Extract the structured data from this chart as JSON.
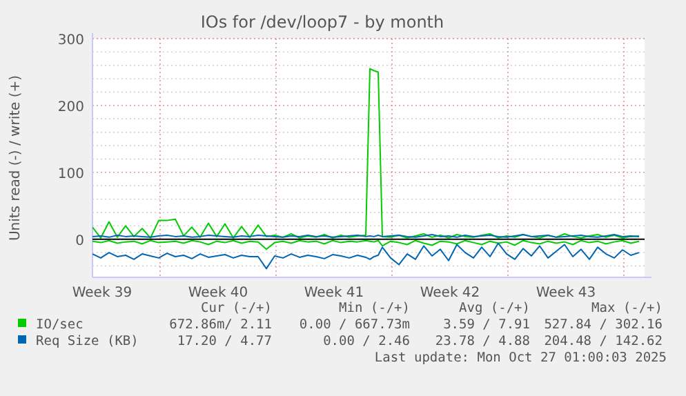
{
  "chart_data": {
    "type": "line",
    "title": "IOs for /dev/loop7 - by month",
    "ylabel": "Units read (-) / write (+)",
    "x": [
      "2025-09-24T22:00",
      "2025-09-25T10:00",
      "2025-09-25T22:00",
      "2025-09-26T10:00",
      "2025-09-26T22:00",
      "2025-09-27T10:00",
      "2025-09-27T22:00",
      "2025-09-28T10:00",
      "2025-09-28T22:00",
      "2025-09-29T10:00",
      "2025-09-29T22:00",
      "2025-09-30T10:00",
      "2025-09-30T22:00",
      "2025-10-01T10:00",
      "2025-10-01T22:00",
      "2025-10-02T10:00",
      "2025-10-02T22:00",
      "2025-10-03T10:00",
      "2025-10-03T22:00",
      "2025-10-04T10:00",
      "2025-10-04T22:00",
      "2025-10-05T10:00",
      "2025-10-05T22:00",
      "2025-10-06T10:00",
      "2025-10-06T22:00",
      "2025-10-07T10:00",
      "2025-10-07T22:00",
      "2025-10-08T10:00",
      "2025-10-08T22:00",
      "2025-10-09T10:00",
      "2025-10-09T22:00",
      "2025-10-10T10:00",
      "2025-10-10T22:00",
      "2025-10-11T10:00",
      "2025-10-11T16:00",
      "2025-10-11T22:00",
      "2025-10-12T04:00",
      "2025-10-12T10:00",
      "2025-10-12T22:00",
      "2025-10-13T10:00",
      "2025-10-13T22:00",
      "2025-10-14T10:00",
      "2025-10-14T22:00",
      "2025-10-15T10:00",
      "2025-10-15T22:00",
      "2025-10-16T10:00",
      "2025-10-16T22:00",
      "2025-10-17T10:00",
      "2025-10-17T22:00",
      "2025-10-18T10:00",
      "2025-10-18T22:00",
      "2025-10-19T10:00",
      "2025-10-19T22:00",
      "2025-10-20T10:00",
      "2025-10-20T22:00",
      "2025-10-21T10:00",
      "2025-10-21T22:00",
      "2025-10-22T10:00",
      "2025-10-22T22:00",
      "2025-10-23T10:00",
      "2025-10-23T22:00",
      "2025-10-24T10:00",
      "2025-10-24T22:00",
      "2025-10-25T10:00",
      "2025-10-25T22:00",
      "2025-10-26T10:00",
      "2025-10-26T22:00",
      "2025-10-27T10:00",
      "2025-10-27T22:00"
    ],
    "series": [
      {
        "name": "IO/sec",
        "color": "#00cc00",
        "values": [
          18,
          2,
          26,
          3,
          20,
          4,
          16,
          2,
          28,
          28,
          30,
          5,
          18,
          3,
          24,
          4,
          23,
          2,
          19,
          3,
          21,
          4,
          6,
          3,
          8,
          2,
          5,
          3,
          7,
          2,
          6,
          3,
          5,
          6,
          255,
          252,
          250,
          4,
          3,
          6,
          2,
          5,
          8,
          3,
          6,
          2,
          7,
          4,
          3,
          6,
          8,
          2,
          5,
          3,
          7,
          4,
          2,
          6,
          3,
          8,
          4,
          2,
          5,
          7,
          3,
          6,
          2,
          4,
          5
        ]
      },
      {
        "color": "#00cc00",
        "values": [
          -3,
          -5,
          -2,
          -6,
          -4,
          -3,
          -7,
          -2,
          -5,
          -4,
          -3,
          -6,
          -2,
          -4,
          -8,
          -3,
          -5,
          -2,
          -6,
          -3,
          -4,
          -15,
          -5,
          -3,
          -6,
          -2,
          -4,
          -3,
          -7,
          -2,
          -5,
          -3,
          -4,
          -2,
          -3,
          -4,
          -2,
          -10,
          -3,
          -5,
          -8,
          -2,
          -6,
          -9,
          -3,
          -4,
          -7,
          -2,
          -5,
          -8,
          -3,
          -6,
          -4,
          -9,
          -2,
          -5,
          -7,
          -3,
          -6,
          -4,
          -8,
          -2,
          -5,
          -3,
          -7,
          -4,
          -2,
          -6,
          -3
        ]
      },
      {
        "name": "Req Size (KB)",
        "color": "#0066b3",
        "values": [
          4,
          5,
          3,
          6,
          4,
          5,
          4,
          3,
          5,
          6,
          4,
          5,
          3,
          4,
          6,
          5,
          4,
          3,
          5,
          4,
          6,
          5,
          4,
          3,
          5,
          4,
          6,
          4,
          5,
          3,
          4,
          5,
          6,
          4,
          5,
          4,
          6,
          4,
          5,
          6,
          4,
          3,
          5,
          7,
          4,
          5,
          3,
          6,
          4,
          5,
          6,
          4,
          3,
          5,
          7,
          4,
          5,
          6,
          3,
          4,
          5,
          6,
          4,
          3,
          5,
          7,
          4,
          5,
          4
        ]
      },
      {
        "color": "#0066b3",
        "values": [
          -22,
          -28,
          -20,
          -26,
          -24,
          -30,
          -22,
          -25,
          -28,
          -21,
          -26,
          -24,
          -29,
          -22,
          -27,
          -25,
          -23,
          -28,
          -24,
          -26,
          -26,
          -44,
          -25,
          -28,
          -22,
          -27,
          -24,
          -26,
          -29,
          -23,
          -25,
          -28,
          -24,
          -27,
          -30,
          -26,
          -24,
          -12,
          -28,
          -38,
          -22,
          -30,
          -10,
          -25,
          -15,
          -32,
          -8,
          -20,
          -28,
          -12,
          -26,
          -6,
          -22,
          -30,
          -14,
          -25,
          -10,
          -28,
          -18,
          -8,
          -26,
          -15,
          -30,
          -12,
          -22,
          -28,
          -16,
          -24,
          -20
        ]
      }
    ],
    "xlim": [
      "2025-09-24T22:00",
      "2025-10-28T06:00"
    ],
    "xticks": [
      {
        "value": "2025-09-25T12:00",
        "label": "Week 39"
      },
      {
        "value": "2025-09-29",
        "label": null
      },
      {
        "value": "2025-10-02T12:00",
        "label": "Week 40"
      },
      {
        "value": "2025-10-06",
        "label": null
      },
      {
        "value": "2025-10-09T12:00",
        "label": "Week 41"
      },
      {
        "value": "2025-10-13",
        "label": null
      },
      {
        "value": "2025-10-16T12:00",
        "label": "Week 42"
      },
      {
        "value": "2025-10-20",
        "label": null
      },
      {
        "value": "2025-10-23T12:00",
        "label": "Week 43"
      },
      {
        "value": "2025-10-27",
        "label": null
      }
    ],
    "ylim": [
      -57,
      300
    ],
    "yticks": [
      {
        "value": -40,
        "label": null
      },
      {
        "value": -20,
        "label": null
      },
      0,
      {
        "value": 20,
        "label": null
      },
      {
        "value": 40,
        "label": null
      },
      {
        "value": 60,
        "label": null
      },
      {
        "value": 80,
        "label": null
      },
      100,
      {
        "value": 120,
        "label": null
      },
      {
        "value": 140,
        "label": null
      },
      {
        "value": 160,
        "label": null
      },
      {
        "value": 180,
        "label": null
      },
      200,
      {
        "value": 220,
        "label": null
      },
      {
        "value": 240,
        "label": null
      },
      {
        "value": 260,
        "label": null
      },
      {
        "value": 280,
        "label": null
      },
      300
    ],
    "grid": true,
    "ref_lines": [
      {
        "axis": "y",
        "value": 0,
        "color": "#000000"
      }
    ],
    "legend": "bottom",
    "annotations": [
      "Cur (-/+)",
      "Min (-/+)",
      "Avg (-/+)",
      "Max (-/+)",
      "672.86m/ 2.11",
      "0.00 / 667.73m",
      "3.59 / 7.91",
      "527.84 / 302.16",
      "17.20 / 4.77",
      "0.00 / 2.46",
      "23.78 / 4.88",
      "204.48 / 142.62",
      "Last update: Mon Oct 27 01:00:03 2025"
    ]
  }
}
